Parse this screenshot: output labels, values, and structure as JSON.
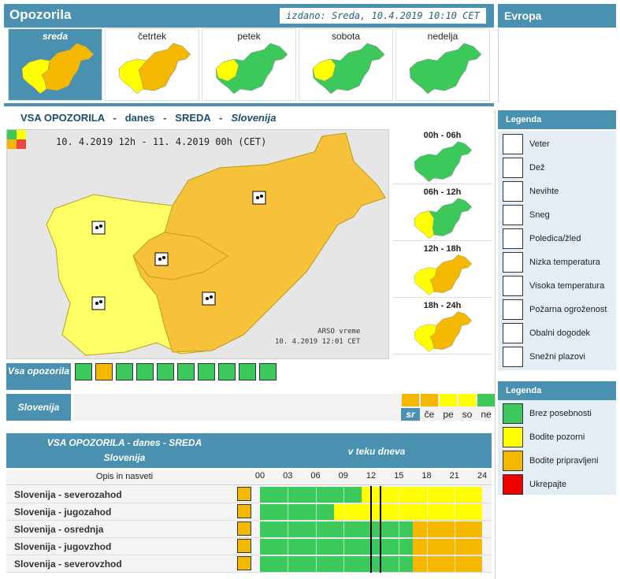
{
  "header": {
    "title": "Opozorila",
    "issued": "izdano: Sreda, 10.4.2019 10:10 CET",
    "europa": "Evropa"
  },
  "days": [
    {
      "label": "sreda",
      "active": true
    },
    {
      "label": "četrtek",
      "active": false
    },
    {
      "label": "petek",
      "active": false
    },
    {
      "label": "sobota",
      "active": false
    },
    {
      "label": "nedelja",
      "active": false
    }
  ],
  "section": {
    "prefix": "VSA OPOZORILA",
    "sep": "-",
    "when": "danes",
    "day": "SREDA",
    "region": "Slovenija"
  },
  "map": {
    "dates": "10. 4.2019 12h  -  11. 4.2019 00h     (CET)",
    "credit_line1": "ARSO vreme",
    "credit_line2": "10. 4.2019  12:01 CET"
  },
  "periods": [
    {
      "label": "00h - 06h"
    },
    {
      "label": "06h - 12h"
    },
    {
      "label": "12h - 18h"
    },
    {
      "label": "18h - 24h"
    }
  ],
  "filter": {
    "all_label": "Vsa opozorila",
    "region_label": "Slovenija"
  },
  "hazard_icons": [
    {
      "name": "veter",
      "level": "green"
    },
    {
      "name": "dez",
      "level": "orange"
    },
    {
      "name": "nevihte",
      "level": "green"
    },
    {
      "name": "sneg",
      "level": "green"
    },
    {
      "name": "poledica",
      "level": "green"
    },
    {
      "name": "nizka-temp",
      "level": "green"
    },
    {
      "name": "visoka-temp",
      "level": "green"
    },
    {
      "name": "pozarna",
      "level": "green"
    },
    {
      "name": "obalni",
      "level": "green"
    },
    {
      "name": "snezni-plazovi",
      "level": "green"
    }
  ],
  "day_scale": [
    "sr",
    "če",
    "pe",
    "so",
    "ne"
  ],
  "colors": {
    "green": "#3cc85a",
    "yellow": "#ffff00",
    "orange": "#f5b800",
    "red": "#ee0000",
    "accent": "#4a90b0"
  },
  "legend_hazards": {
    "title": "Legenda",
    "items": [
      "Veter",
      "Dež",
      "Nevihte",
      "Sneg",
      "Poledica/žled",
      "Nizka temperatura",
      "Visoka temperatura",
      "Požarna ogroženost",
      "Obalni dogodek",
      "Snežni plazovi"
    ]
  },
  "legend_levels": {
    "title": "Legenda",
    "items": [
      "Brez posebnosti",
      "Bodite pozorni",
      "Bodite pripravljeni",
      "Ukrepajte"
    ]
  },
  "table": {
    "head1": "VSA OPOZORILA - danes - SREDA",
    "head2": "Slovenija",
    "head3": "v teku dneva",
    "col_opis": "Opis in nasveti",
    "hours": [
      "00",
      "03",
      "06",
      "09",
      "12",
      "15",
      "18",
      "21",
      "24"
    ],
    "rows": [
      {
        "name": "Slovenija - severozahod",
        "yellow_from_h": 11,
        "orange_from_h": 24
      },
      {
        "name": "Slovenija - jugozahod",
        "yellow_from_h": 8,
        "orange_from_h": 24
      },
      {
        "name": "Slovenija - osrednja",
        "yellow_from_h": 24,
        "orange_from_h": 16.5
      },
      {
        "name": "Slovenija - jugovzhod",
        "yellow_from_h": 24,
        "orange_from_h": 16.5
      },
      {
        "name": "Slovenija - severovzhod",
        "yellow_from_h": 24,
        "orange_from_h": 16.5
      }
    ]
  }
}
